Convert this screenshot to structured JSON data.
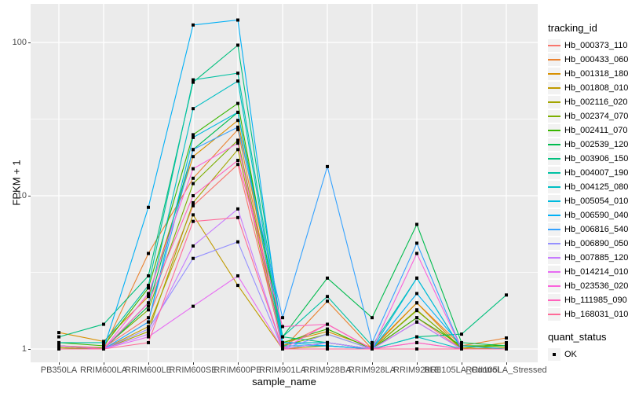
{
  "chart_data": {
    "type": "line",
    "title": "",
    "xlabel": "sample_name",
    "ylabel": "FPKM + 1",
    "y_scale": "log10",
    "y_ticks": [
      100,
      10,
      1
    ],
    "ylim": [
      0.85,
      158
    ],
    "grid": "white major and minor gridlines on gray panel",
    "legend_position": "right",
    "legend_titles": {
      "series": "tracking_id",
      "quant": "quant_status"
    },
    "quant_status_items": [
      "OK"
    ],
    "marker": {
      "shape": "square",
      "color": "#000000",
      "size": 4
    },
    "style": {
      "panel_bg": "#EBEBEB",
      "grid_color": "#FFFFFF",
      "key_bg": "#F2F2F2",
      "axis_text": "#4D4D4D",
      "tick_color": "#333333"
    },
    "categories": [
      "PB350LA",
      "RRIM600LA",
      "RRIM600LE",
      "RRIM600SE",
      "RRIM600PE",
      "RRIM901LA",
      "RRIM928BA",
      "RRIM928LA",
      "RRIM928LE",
      "RRII105LA_Control",
      "RRII105LA_Stressed"
    ],
    "series": [
      {
        "name": "Hb_000373_110",
        "color": "#F8766D",
        "values": [
          1.05,
          1.02,
          1.6,
          8.6,
          16,
          1.05,
          1.45,
          1.0,
          1.6,
          1.0,
          1.0
        ]
      },
      {
        "name": "Hb_000433_060",
        "color": "#EA8331",
        "values": [
          1.0,
          1.0,
          4.2,
          13,
          27,
          1.0,
          2.05,
          1.0,
          2.0,
          1.05,
          1.18
        ]
      },
      {
        "name": "Hb_001318_180",
        "color": "#D89000",
        "values": [
          1.28,
          1.12,
          2.2,
          18,
          31,
          1.1,
          1.3,
          1.02,
          2.0,
          1.0,
          1.1
        ]
      },
      {
        "name": "Hb_001808_010",
        "color": "#C09B00",
        "values": [
          1.0,
          1.0,
          1.4,
          7.5,
          2.6,
          1.0,
          1.05,
          1.0,
          1.5,
          1.0,
          1.0
        ]
      },
      {
        "name": "Hb_002116_020",
        "color": "#A3A500",
        "values": [
          1.02,
          1.0,
          1.3,
          9.0,
          20,
          1.0,
          1.1,
          1.0,
          1.8,
          1.0,
          1.02
        ]
      },
      {
        "name": "Hb_002374_070",
        "color": "#7CAE00",
        "values": [
          1.0,
          1.02,
          1.8,
          12,
          23,
          1.05,
          1.25,
          1.0,
          1.78,
          1.02,
          1.05
        ]
      },
      {
        "name": "Hb_002411_070",
        "color": "#39B600",
        "values": [
          1.1,
          1.05,
          2.5,
          25,
          40,
          1.1,
          1.35,
          1.0,
          1.6,
          1.05,
          1.05
        ]
      },
      {
        "name": "Hb_002539_120",
        "color": "#00BB4E",
        "values": [
          1.05,
          1.0,
          1.9,
          20,
          35,
          1.2,
          2.9,
          1.6,
          6.5,
          1.1,
          1.05
        ]
      },
      {
        "name": "Hb_003906_150",
        "color": "#00BF7D",
        "values": [
          1.2,
          1.45,
          3.0,
          55,
          96,
          1.2,
          1.1,
          1.0,
          1.2,
          1.25,
          2.25
        ]
      },
      {
        "name": "Hb_004007_190",
        "color": "#00C1A3",
        "values": [
          1.1,
          1.1,
          2.6,
          57,
          63,
          1.2,
          2.2,
          1.05,
          2.9,
          1.0,
          1.0
        ]
      },
      {
        "name": "Hb_004125_080",
        "color": "#00BFC4",
        "values": [
          1.05,
          1.0,
          2.0,
          37,
          56,
          1.1,
          1.1,
          1.0,
          1.2,
          1.0,
          1.0
        ]
      },
      {
        "name": "Hb_005054_010",
        "color": "#00BADE",
        "values": [
          1.0,
          1.0,
          1.5,
          24,
          35,
          1.05,
          1.05,
          1.0,
          2.9,
          1.0,
          1.0
        ]
      },
      {
        "name": "Hb_006590_040",
        "color": "#00B0F6",
        "values": [
          1.05,
          1.0,
          8.4,
          130,
          140,
          1.1,
          1.05,
          1.0,
          2.3,
          1.05,
          1.0
        ]
      },
      {
        "name": "Hb_006816_540",
        "color": "#35A2FF",
        "values": [
          1.0,
          1.0,
          1.5,
          20,
          28,
          1.6,
          15.5,
          1.1,
          4.9,
          1.0,
          1.0
        ]
      },
      {
        "name": "Hb_006890_050",
        "color": "#9590FF",
        "values": [
          1.0,
          1.0,
          1.35,
          3.9,
          5.0,
          1.0,
          1.25,
          1.0,
          1.5,
          1.0,
          1.0
        ]
      },
      {
        "name": "Hb_007885_120",
        "color": "#C77CFF",
        "values": [
          1.0,
          1.0,
          1.25,
          4.7,
          8.2,
          1.0,
          1.1,
          1.0,
          1.5,
          1.0,
          1.0
        ]
      },
      {
        "name": "Hb_014214_010",
        "color": "#E76BF3",
        "values": [
          1.0,
          1.0,
          1.2,
          1.9,
          3.0,
          1.0,
          1.0,
          1.0,
          1.1,
          1.0,
          1.0
        ]
      },
      {
        "name": "Hb_023536_020",
        "color": "#FA62DB",
        "values": [
          1.0,
          1.0,
          2.3,
          15,
          22,
          1.0,
          1.45,
          1.0,
          4.2,
          1.0,
          1.0
        ]
      },
      {
        "name": "Hb_111985_090",
        "color": "#FF62BC",
        "values": [
          1.05,
          1.0,
          2.0,
          10,
          17,
          1.4,
          1.45,
          1.0,
          1.1,
          1.0,
          1.0
        ]
      },
      {
        "name": "Hb_168031_010",
        "color": "#FF6A98",
        "values": [
          1.0,
          1.0,
          1.1,
          6.8,
          7.2,
          1.0,
          1.0,
          1.0,
          1.0,
          1.0,
          1.0
        ]
      }
    ]
  }
}
